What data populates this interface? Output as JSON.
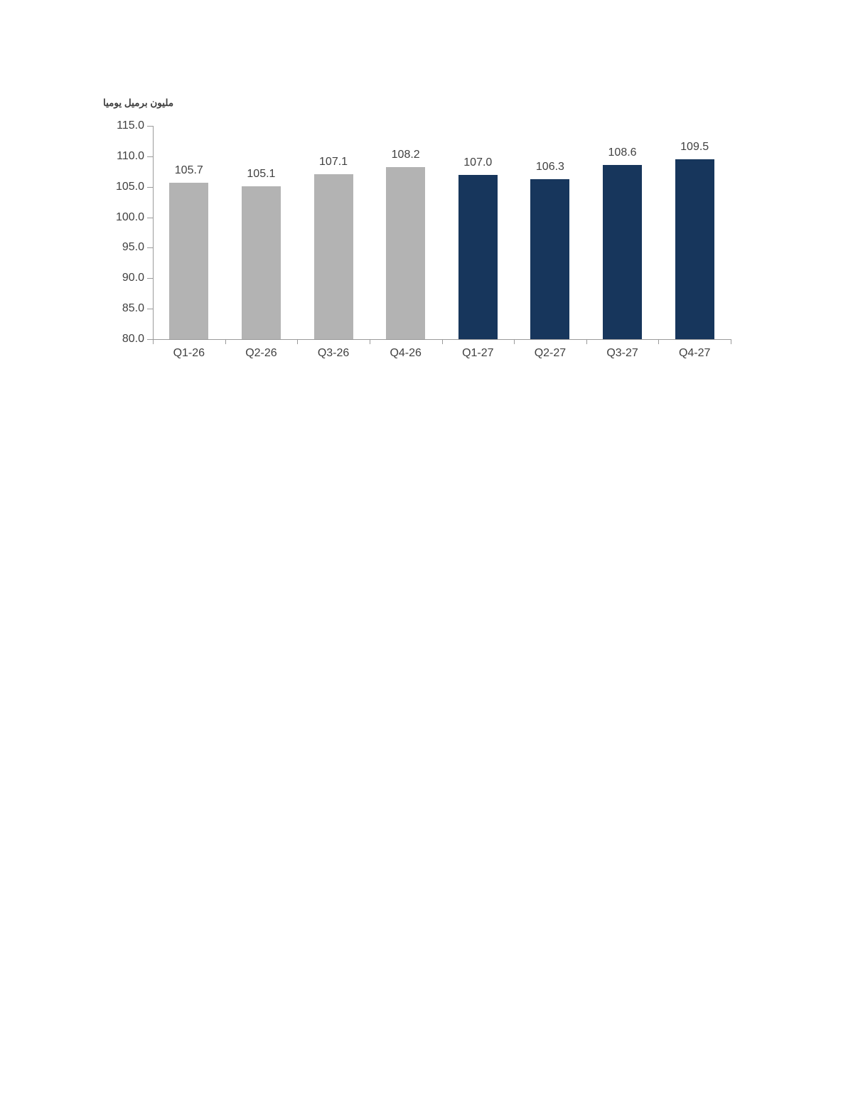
{
  "chart_data": {
    "type": "bar",
    "title": "مليون برميل يوميا",
    "xlabel": "",
    "ylabel": "",
    "ylim": [
      80.0,
      115.0
    ],
    "ytick_step": 5.0,
    "ytick_labels": [
      "115.0",
      "110.0",
      "105.0",
      "100.0",
      "95.0",
      "90.0",
      "85.0",
      "80.0"
    ],
    "grid": false,
    "legend": "none",
    "categories": [
      "Q1-26",
      "Q2-26",
      "Q3-26",
      "Q4-26",
      "Q1-27",
      "Q2-27",
      "Q3-27",
      "Q4-27"
    ],
    "values": [
      105.7,
      105.1,
      107.1,
      108.2,
      107.0,
      106.3,
      108.6,
      109.5
    ],
    "value_labels": [
      "105.7",
      "105.1",
      "107.1",
      "108.2",
      "107.0",
      "106.3",
      "108.6",
      "109.5"
    ],
    "bar_colors": [
      "#b3b3b3",
      "#b3b3b3",
      "#b3b3b3",
      "#b3b3b3",
      "#17365c",
      "#17365c",
      "#17365c",
      "#17365c"
    ],
    "series_meta": {
      "historical_color": "#b3b3b3",
      "forecast_color": "#17365c"
    },
    "axis_color": "#9a9a9a",
    "text_color": "#404040"
  }
}
